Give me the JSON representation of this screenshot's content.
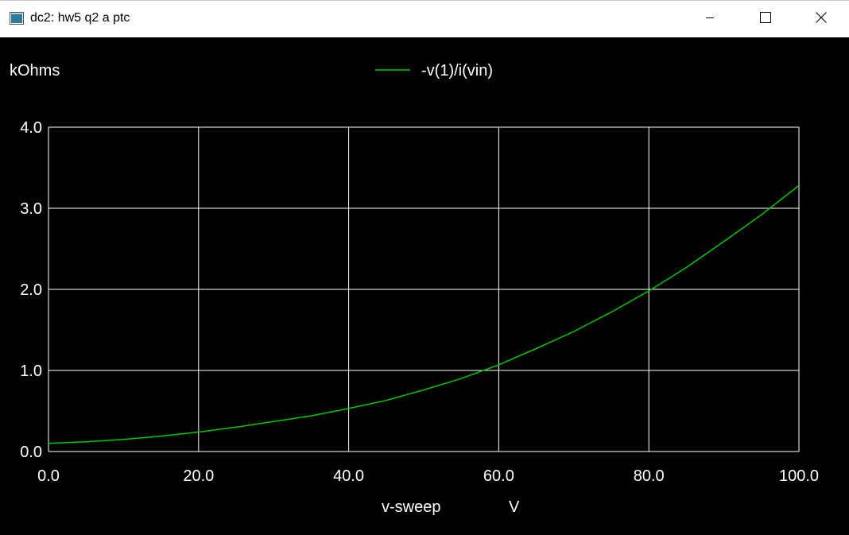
{
  "window": {
    "title": "dc2: hw5 q2 a ptc",
    "icon": "plot-window-icon",
    "controls": [
      "minimize-icon",
      "maximize-icon",
      "close-icon"
    ]
  },
  "colors": {
    "background": "#000000",
    "grid": "#ffffff",
    "trace": "#00c800",
    "text": "#ffffff"
  },
  "chart_data": {
    "type": "line",
    "ylabel": "kOhms",
    "xlabel": "v-sweep",
    "xunit": "V",
    "xlim": [
      0,
      100
    ],
    "ylim": [
      0,
      4
    ],
    "xticks": [
      "0.0",
      "20.0",
      "40.0",
      "60.0",
      "80.0",
      "100.0"
    ],
    "yticks": [
      "0.0",
      "1.0",
      "2.0",
      "3.0",
      "4.0"
    ],
    "grid": true,
    "legend_position": "top-center",
    "series": [
      {
        "name": "-v(1)/i(vin)",
        "color": "#00c800",
        "x": [
          0,
          5,
          10,
          15,
          20,
          25,
          30,
          35,
          40,
          45,
          50,
          55,
          60,
          65,
          70,
          75,
          80,
          85,
          90,
          95,
          100
        ],
        "y": [
          0.1,
          0.12,
          0.15,
          0.19,
          0.24,
          0.3,
          0.37,
          0.44,
          0.53,
          0.63,
          0.76,
          0.9,
          1.07,
          1.27,
          1.48,
          1.72,
          1.98,
          2.27,
          2.59,
          2.92,
          3.28
        ]
      }
    ]
  }
}
